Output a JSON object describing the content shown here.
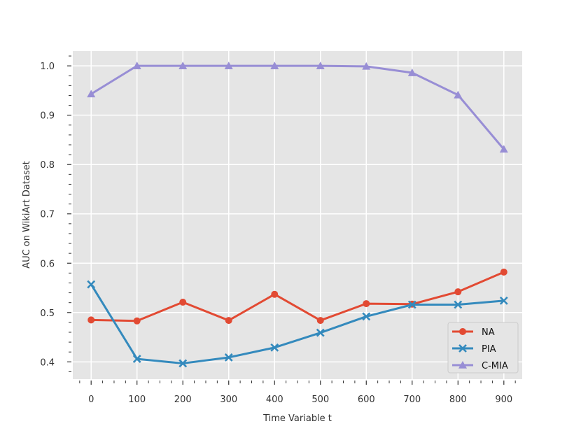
{
  "chart_data": {
    "type": "line",
    "title": "",
    "xlabel": "Time Variable t",
    "ylabel": "AUC on WikiArt Dataset",
    "x": [
      0,
      100,
      200,
      300,
      400,
      500,
      600,
      700,
      800,
      900
    ],
    "xlim": [
      -40,
      940
    ],
    "ylim": [
      0.365,
      1.03
    ],
    "xticks": [
      "0",
      "100",
      "200",
      "300",
      "400",
      "500",
      "600",
      "700",
      "800",
      "900"
    ],
    "yticks": [
      "0.4",
      "0.5",
      "0.6",
      "0.7",
      "0.8",
      "0.9",
      "1.0"
    ],
    "grid": true,
    "legend_position": "lower-right",
    "series": [
      {
        "name": "NA",
        "color": "#E24A33",
        "marker": "circle",
        "values": [
          0.485,
          0.483,
          0.521,
          0.484,
          0.537,
          0.484,
          0.518,
          0.517,
          0.542,
          0.582
        ]
      },
      {
        "name": "PIA",
        "color": "#348ABD",
        "marker": "x",
        "values": [
          0.557,
          0.406,
          0.397,
          0.409,
          0.429,
          0.459,
          0.492,
          0.516,
          0.516,
          0.524
        ]
      },
      {
        "name": "C-MIA",
        "color": "#988ED5",
        "marker": "triangle",
        "values": [
          0.943,
          1.0,
          1.0,
          1.0,
          1.0,
          1.0,
          0.999,
          0.986,
          0.941,
          0.831
        ]
      }
    ]
  }
}
